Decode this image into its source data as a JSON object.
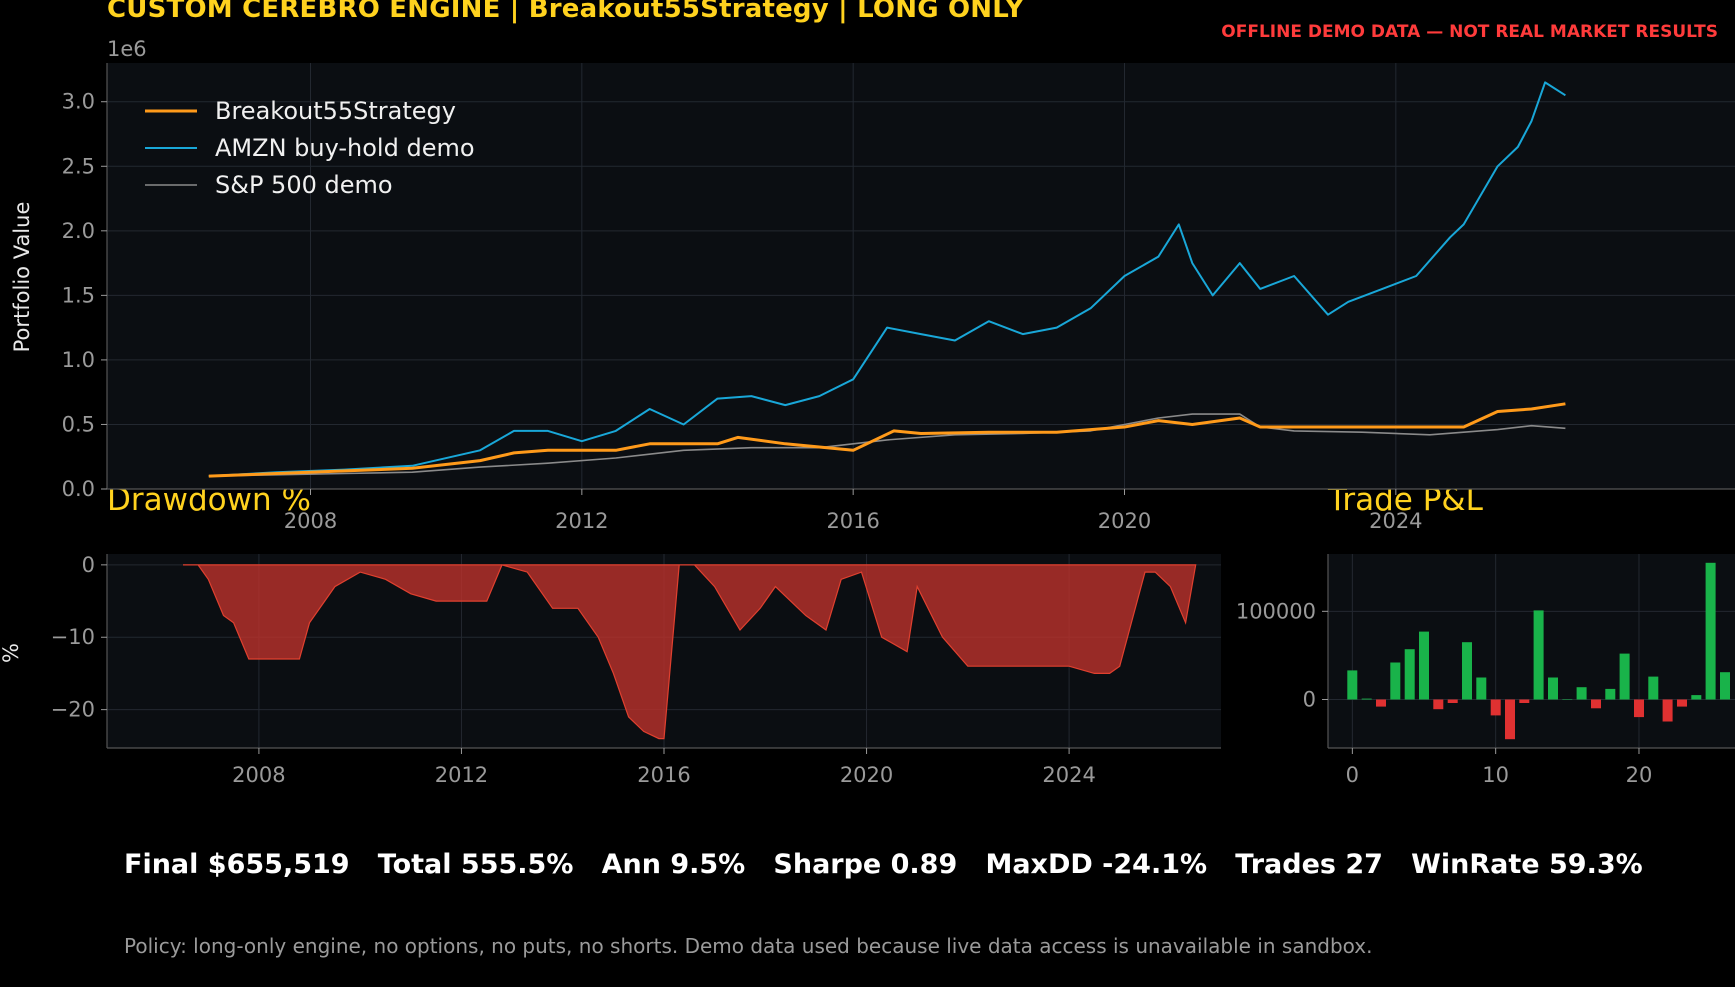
{
  "header": {
    "title": "CUSTOM CEREBRO ENGINE | Breakout55Strategy | LONG ONLY",
    "warning": "OFFLINE DEMO DATA — NOT REAL MARKET RESULTS"
  },
  "footer": {
    "stats": "Final $655,519   Total 555.5%   Ann 9.5%   Sharpe 0.89   MaxDD -24.1%   Trades 27   WinRate 59.3%",
    "policy": "Policy: long-only engine, no options, no puts, no shorts. Demo data used because live data access is unavailable in sandbox."
  },
  "colors": {
    "strategy": "#ff9a1a",
    "amzn": "#19a7d8",
    "sp500": "#8a8a8a",
    "drawdown": "#c0322b",
    "win": "#19b34a",
    "loss": "#e03131",
    "panel_bg": "#0b0e12",
    "title": "#ffd21e"
  },
  "chart_data": [
    {
      "type": "line",
      "ylabel": "Portfolio Value",
      "y_offset_label": "1e6",
      "xlim": [
        2005.0,
        2029.0
      ],
      "ylim": [
        0,
        3.3
      ],
      "x_ticks": [
        2008,
        2012,
        2016,
        2020,
        2024
      ],
      "y_ticks": [
        0.0,
        0.5,
        1.0,
        1.5,
        2.0,
        2.5,
        3.0
      ],
      "y_tick_labels": [
        "0.0",
        "0.5",
        "1.0",
        "1.5",
        "2.0",
        "2.5",
        "3.0"
      ],
      "grid": true,
      "legend": "top-left",
      "series": [
        {
          "name": "Breakout55Strategy",
          "x": [
            2006.5,
            2007.5,
            2008.5,
            2009.5,
            2010.5,
            2011.0,
            2011.5,
            2012.5,
            2013.0,
            2014.0,
            2014.3,
            2015.0,
            2016.0,
            2016.6,
            2017.0,
            2018.0,
            2019.0,
            2019.5,
            2020.0,
            2020.5,
            2021.0,
            2021.7,
            2022.0,
            2023.0,
            2024.0,
            2025.0,
            2025.5,
            2026.0,
            2026.5
          ],
          "y": [
            0.1,
            0.12,
            0.14,
            0.16,
            0.22,
            0.28,
            0.3,
            0.3,
            0.35,
            0.35,
            0.4,
            0.35,
            0.3,
            0.45,
            0.43,
            0.44,
            0.44,
            0.46,
            0.48,
            0.53,
            0.5,
            0.55,
            0.48,
            0.48,
            0.48,
            0.48,
            0.6,
            0.62,
            0.66
          ]
        },
        {
          "name": "AMZN buy-hold demo",
          "x": [
            2006.5,
            2007.5,
            2008.5,
            2009.5,
            2010.5,
            2011.0,
            2011.5,
            2012.0,
            2012.5,
            2013.0,
            2013.5,
            2014.0,
            2014.5,
            2015.0,
            2015.5,
            2016.0,
            2016.5,
            2017.0,
            2017.5,
            2018.0,
            2018.5,
            2019.0,
            2019.5,
            2020.0,
            2020.5,
            2020.8,
            2021.0,
            2021.3,
            2021.7,
            2022.0,
            2022.5,
            2023.0,
            2023.3,
            2023.8,
            2024.3,
            2024.8,
            2025.0,
            2025.5,
            2025.8,
            2026.0,
            2026.2,
            2026.5
          ],
          "y": [
            0.1,
            0.13,
            0.15,
            0.18,
            0.3,
            0.45,
            0.45,
            0.37,
            0.45,
            0.62,
            0.5,
            0.7,
            0.72,
            0.65,
            0.72,
            0.85,
            1.25,
            1.2,
            1.15,
            1.3,
            1.2,
            1.25,
            1.4,
            1.65,
            1.8,
            2.05,
            1.75,
            1.5,
            1.75,
            1.55,
            1.65,
            1.35,
            1.45,
            1.55,
            1.65,
            1.95,
            2.05,
            2.5,
            2.65,
            2.85,
            3.15,
            3.05
          ]
        },
        {
          "name": "S&P 500 demo",
          "x": [
            2006.5,
            2007.5,
            2008.5,
            2009.5,
            2010.5,
            2011.5,
            2012.5,
            2013.5,
            2014.5,
            2015.5,
            2016.5,
            2017.5,
            2018.5,
            2019.5,
            2020.0,
            2020.5,
            2021.0,
            2021.7,
            2022.0,
            2022.5,
            2023.5,
            2024.5,
            2025.5,
            2026.0,
            2026.5
          ],
          "y": [
            0.1,
            0.11,
            0.12,
            0.13,
            0.17,
            0.2,
            0.24,
            0.3,
            0.32,
            0.32,
            0.38,
            0.42,
            0.43,
            0.45,
            0.5,
            0.55,
            0.58,
            0.58,
            0.48,
            0.45,
            0.44,
            0.42,
            0.46,
            0.49,
            0.47
          ]
        }
      ]
    },
    {
      "type": "area",
      "title": "Drawdown %",
      "ylabel": "%",
      "xlim": [
        2005.0,
        2027.0
      ],
      "ylim": [
        -25.3,
        1.5
      ],
      "x_ticks": [
        2008,
        2012,
        2016,
        2020,
        2024
      ],
      "y_ticks": [
        0,
        -10,
        -20
      ],
      "y_tick_labels": [
        "0",
        "−10",
        "−20"
      ],
      "grid": true,
      "x": [
        2006.5,
        2006.8,
        2007.0,
        2007.3,
        2007.5,
        2007.8,
        2008.2,
        2008.8,
        2009.0,
        2009.5,
        2010.0,
        2010.5,
        2011.0,
        2011.5,
        2012.0,
        2012.5,
        2012.8,
        2013.3,
        2013.8,
        2014.3,
        2014.7,
        2015.0,
        2015.3,
        2015.6,
        2015.9,
        2016.0,
        2016.3,
        2016.6,
        2017.0,
        2017.5,
        2017.9,
        2018.2,
        2018.8,
        2019.2,
        2019.5,
        2019.9,
        2020.3,
        2020.8,
        2021.0,
        2021.5,
        2022.0,
        2022.8,
        2023.5,
        2024.0,
        2024.5,
        2024.8,
        2025.0,
        2025.5,
        2025.7,
        2026.0,
        2026.3,
        2026.5
      ],
      "y": [
        0,
        0,
        -2,
        -7,
        -8,
        -13,
        -13,
        -13,
        -8,
        -3,
        -1,
        -2,
        -4,
        -5,
        -5,
        -5,
        0,
        -1,
        -6,
        -6,
        -10,
        -15,
        -21,
        -23,
        -24,
        -24,
        0,
        0,
        -3,
        -9,
        -6,
        -3,
        -7,
        -9,
        -2,
        -1,
        -10,
        -12,
        -3,
        -10,
        -14,
        -14,
        -14,
        -14,
        -15,
        -15,
        -14,
        -1,
        -1,
        -3,
        -8,
        0
      ]
    },
    {
      "type": "bar",
      "title": "Trade P&L",
      "xlim": [
        -1.7,
        26.7
      ],
      "ylim": [
        -55000,
        165000
      ],
      "x_ticks": [
        0,
        10,
        20
      ],
      "y_ticks": [
        0,
        100000
      ],
      "y_tick_labels": [
        "0",
        "100000"
      ],
      "grid": true,
      "categories": [
        0,
        1,
        2,
        3,
        4,
        5,
        6,
        7,
        8,
        9,
        10,
        11,
        12,
        13,
        14,
        15,
        16,
        17,
        18,
        19,
        20,
        21,
        22,
        23,
        24,
        25,
        26
      ],
      "values": [
        33000,
        1000,
        -8000,
        42000,
        57000,
        77000,
        -11000,
        -4000,
        65000,
        25000,
        -18000,
        -45000,
        -4000,
        101000,
        25000,
        0,
        14000,
        -10000,
        12000,
        52000,
        -20000,
        26000,
        -25000,
        -8000,
        5000,
        155000,
        31000
      ]
    }
  ]
}
